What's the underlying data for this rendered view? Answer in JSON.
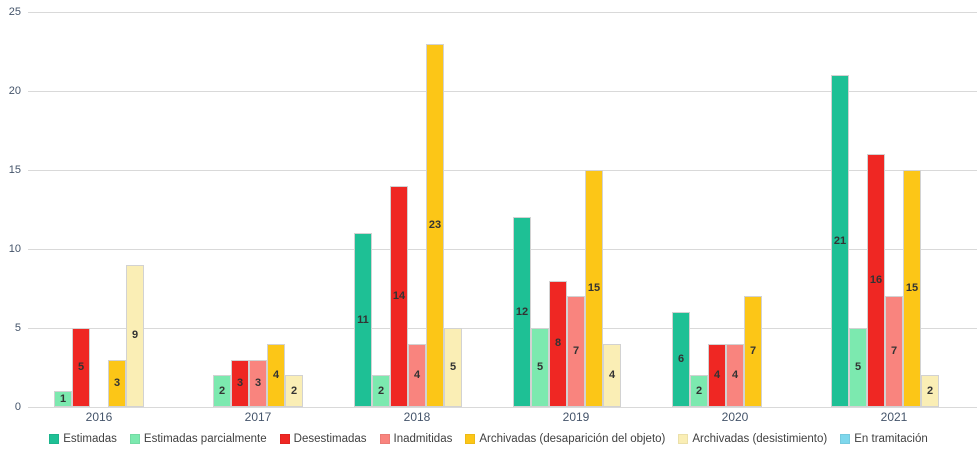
{
  "chart_data": {
    "type": "bar",
    "title": "",
    "xlabel": "",
    "ylabel": "",
    "categories": [
      "2016",
      "2017",
      "2018",
      "2019",
      "2020",
      "2021"
    ],
    "series": [
      {
        "name": "Estimadas",
        "color": "#1ec095",
        "values": [
          0,
          0,
          11,
          12,
          6,
          21
        ]
      },
      {
        "name": "Estimadas parcialmente",
        "color": "#7ce9af",
        "values": [
          1,
          2,
          2,
          5,
          2,
          5
        ]
      },
      {
        "name": "Desestimadas",
        "color": "#ef2723",
        "values": [
          5,
          3,
          14,
          8,
          4,
          16
        ]
      },
      {
        "name": "Inadmitidas",
        "color": "#f9847e",
        "values": [
          0,
          3,
          4,
          7,
          4,
          7
        ]
      },
      {
        "name": "Archivadas (desaparición del objeto)",
        "color": "#fcc617",
        "values": [
          3,
          4,
          23,
          15,
          7,
          15
        ]
      },
      {
        "name": "Archivadas (desistimiento)",
        "color": "#faeeb5",
        "values": [
          9,
          2,
          5,
          4,
          0,
          2
        ]
      },
      {
        "name": "En tramitación",
        "color": "#7ed7ec",
        "values": [
          0,
          0,
          0,
          0,
          0,
          0
        ]
      }
    ],
    "ylim": [
      0,
      25
    ],
    "yticks": [
      0,
      5,
      10,
      15,
      20,
      25
    ],
    "grid": true,
    "legend_position": "bottom",
    "value_labels": "shown inside bars, hidden for zero values"
  },
  "colors": {
    "background": "#ffffff",
    "gridline": "#d9d9d9",
    "axis_text": "#44546a",
    "legend_text": "#404040",
    "bar_value_text": "#333333",
    "bar_border": "#d2d2d2"
  }
}
